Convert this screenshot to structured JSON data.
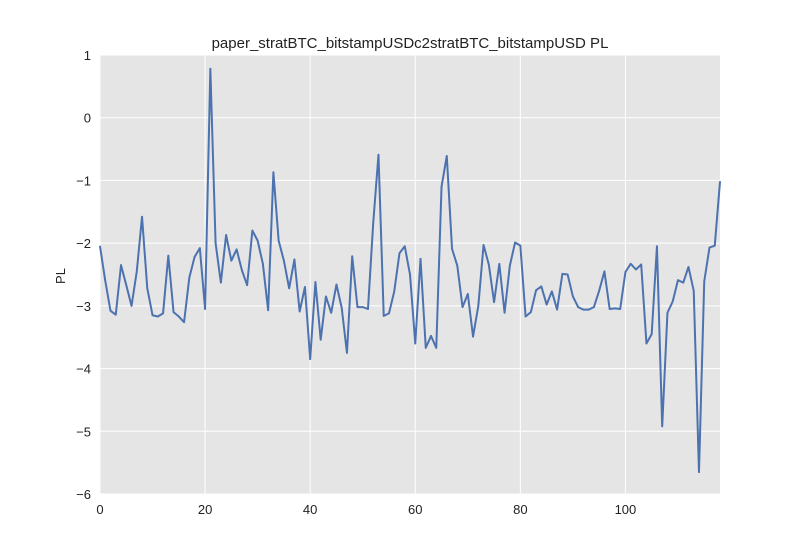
{
  "chart_data": {
    "type": "line",
    "title": "paper_stratBTC_bitstampUSDc2stratBTC_bitstampUSD PL",
    "xlabel": "",
    "ylabel": "PL",
    "xlim": [
      0,
      118
    ],
    "ylim": [
      -6,
      1
    ],
    "xticks": [
      0,
      20,
      40,
      60,
      80,
      100
    ],
    "xtick_labels": [
      "0",
      "20",
      "40",
      "60",
      "80",
      "100"
    ],
    "yticks": [
      1,
      0,
      -1,
      -2,
      -3,
      -4,
      -5,
      -6
    ],
    "ytick_labels": [
      "1",
      "0",
      "−1",
      "−2",
      "−3",
      "−4",
      "−5",
      "−6"
    ],
    "grid": true,
    "colors": {
      "background": "#e5e5e5",
      "grid": "#ffffff",
      "line": "#4c72b0"
    },
    "series": [
      {
        "name": "PL",
        "x": [
          0,
          1,
          2,
          3,
          4,
          5,
          6,
          7,
          8,
          9,
          10,
          11,
          12,
          13,
          14,
          15,
          16,
          17,
          18,
          19,
          20,
          21,
          22,
          23,
          24,
          25,
          26,
          27,
          28,
          29,
          30,
          31,
          32,
          33,
          34,
          35,
          36,
          37,
          38,
          39,
          40,
          41,
          42,
          43,
          44,
          45,
          46,
          47,
          48,
          49,
          50,
          51,
          52,
          53,
          54,
          55,
          56,
          57,
          58,
          59,
          60,
          61,
          62,
          63,
          64,
          65,
          66,
          67,
          68,
          69,
          70,
          71,
          72,
          73,
          74,
          75,
          76,
          77,
          78,
          79,
          80,
          81,
          82,
          83,
          84,
          85,
          86,
          87,
          88,
          89,
          90,
          91,
          92,
          93,
          94,
          95,
          96,
          97,
          98,
          99,
          100,
          101,
          102,
          103,
          104,
          105,
          106,
          107,
          108,
          109,
          110,
          111,
          112,
          113,
          114,
          115,
          116,
          117,
          118
        ],
        "values": [
          -2.05,
          -2.6,
          -3.08,
          -3.14,
          -2.35,
          -2.67,
          -3.0,
          -2.45,
          -1.58,
          -2.72,
          -3.15,
          -3.17,
          -3.12,
          -2.2,
          -3.1,
          -3.17,
          -3.26,
          -2.55,
          -2.22,
          -2.08,
          -3.05,
          0.78,
          -2.0,
          -2.63,
          -1.87,
          -2.28,
          -2.1,
          -2.43,
          -2.67,
          -1.8,
          -1.96,
          -2.33,
          -3.07,
          -0.87,
          -1.96,
          -2.28,
          -2.72,
          -2.26,
          -3.09,
          -2.7,
          -3.85,
          -2.62,
          -3.54,
          -2.85,
          -3.11,
          -2.66,
          -3.03,
          -3.75,
          -2.21,
          -3.02,
          -3.02,
          -3.05,
          -1.68,
          -0.59,
          -3.16,
          -3.12,
          -2.77,
          -2.16,
          -2.05,
          -2.5,
          -3.6,
          -2.25,
          -3.67,
          -3.48,
          -3.67,
          -1.1,
          -0.61,
          -2.09,
          -2.36,
          -3.02,
          -2.81,
          -3.49,
          -3.0,
          -2.03,
          -2.34,
          -2.94,
          -2.33,
          -3.11,
          -2.36,
          -1.99,
          -2.04,
          -3.17,
          -3.1,
          -2.75,
          -2.69,
          -2.98,
          -2.77,
          -3.06,
          -2.49,
          -2.5,
          -2.85,
          -3.02,
          -3.06,
          -3.06,
          -3.02,
          -2.76,
          -2.45,
          -3.05,
          -3.04,
          -3.05,
          -2.46,
          -2.33,
          -2.42,
          -2.34,
          -3.6,
          -3.45,
          -2.05,
          -4.92,
          -3.11,
          -2.93,
          -2.59,
          -2.63,
          -2.38,
          -2.76,
          -5.65,
          -2.61,
          -2.07,
          -2.04,
          -1.02
        ]
      }
    ]
  }
}
